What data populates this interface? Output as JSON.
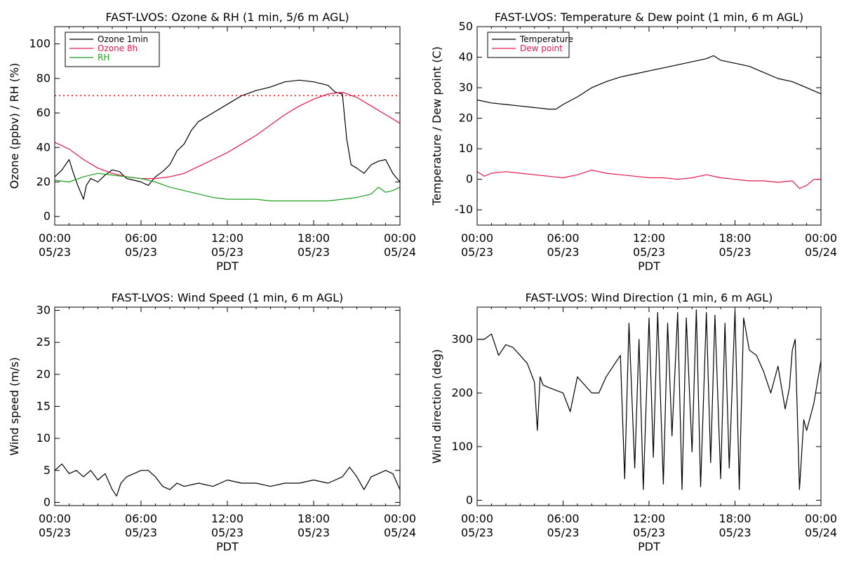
{
  "colors": {
    "black": "#000000",
    "red": "#e8174a",
    "green": "#1ea01e",
    "ref_line": "#ff0000"
  },
  "chart_data": [
    {
      "type": "line",
      "title": "FAST-LVOS: Ozone & RH (1 min, 5/6 m AGL)",
      "xlabel": "PDT",
      "ylabel": "Ozone (ppbv) / RH (%)",
      "xlim": [
        0,
        24
      ],
      "ylim": [
        -5,
        110
      ],
      "xticks": [
        {
          "x": 0,
          "label": "00:00",
          "date": "05/23"
        },
        {
          "x": 6,
          "label": "06:00",
          "date": "05/23"
        },
        {
          "x": 12,
          "label": "12:00",
          "date": "05/23"
        },
        {
          "x": 18,
          "label": "18:00",
          "date": "05/23"
        },
        {
          "x": 24,
          "label": "00:00",
          "date": "05/24"
        }
      ],
      "yticks": [
        0,
        20,
        40,
        60,
        80,
        100
      ],
      "legend": "top-left",
      "reference_lines": [
        {
          "y": 70,
          "style": "dotted",
          "color": "red"
        }
      ],
      "series": [
        {
          "name": "Ozone 1min",
          "color": "black",
          "x": [
            0,
            0.5,
            1,
            1.3,
            1.6,
            2,
            2.2,
            2.5,
            3,
            3.5,
            4,
            4.5,
            5,
            5.5,
            6,
            6.5,
            7,
            7.5,
            8,
            8.5,
            9,
            9.5,
            10,
            11,
            12,
            13,
            14,
            15,
            16,
            17,
            18,
            18.5,
            19,
            19.5,
            20,
            20.3,
            20.6,
            21,
            21.5,
            22,
            22.5,
            23,
            23.5,
            24
          ],
          "y": [
            23,
            27,
            33,
            25,
            18,
            10,
            18,
            22,
            20,
            24,
            27,
            26,
            22,
            21,
            20,
            18,
            23,
            26,
            30,
            38,
            42,
            50,
            55,
            60,
            65,
            70,
            73,
            75,
            78,
            79,
            78,
            77,
            76,
            72,
            71,
            45,
            30,
            28,
            25,
            30,
            32,
            33,
            25,
            20
          ]
        },
        {
          "name": "Ozone 8h",
          "color": "red",
          "x": [
            0,
            1,
            2,
            3,
            4,
            5,
            6,
            7,
            8,
            9,
            10,
            11,
            12,
            13,
            14,
            15,
            16,
            17,
            18,
            19,
            20,
            21,
            22,
            23,
            24
          ],
          "y": [
            43,
            39,
            33,
            28,
            25,
            23,
            22,
            22,
            23,
            25,
            29,
            33,
            37,
            42,
            47,
            53,
            59,
            64,
            68,
            71,
            72,
            69,
            64,
            59,
            54
          ]
        },
        {
          "name": "RH",
          "color": "green",
          "x": [
            0,
            1,
            2,
            3,
            4,
            5,
            6,
            7,
            8,
            9,
            10,
            11,
            12,
            13,
            14,
            15,
            16,
            17,
            18,
            19,
            20,
            21,
            22,
            22.5,
            23,
            23.5,
            24
          ],
          "y": [
            21,
            20,
            23,
            25,
            24,
            23,
            22,
            20,
            17,
            15,
            13,
            11,
            10,
            10,
            10,
            9,
            9,
            9,
            9,
            9,
            10,
            11,
            13,
            17,
            14,
            15,
            17
          ]
        }
      ]
    },
    {
      "type": "line",
      "title": "FAST-LVOS: Temperature & Dew point (1 min, 6 m AGL)",
      "xlabel": "PDT",
      "ylabel": "Temperature / Dew point (C)",
      "xlim": [
        0,
        24
      ],
      "ylim": [
        -15,
        50
      ],
      "xticks": [
        {
          "x": 0,
          "label": "00:00",
          "date": "05/23"
        },
        {
          "x": 6,
          "label": "06:00",
          "date": "05/23"
        },
        {
          "x": 12,
          "label": "12:00",
          "date": "05/23"
        },
        {
          "x": 18,
          "label": "18:00",
          "date": "05/23"
        },
        {
          "x": 24,
          "label": "00:00",
          "date": "05/24"
        }
      ],
      "yticks": [
        -10,
        0,
        10,
        20,
        30,
        40,
        50
      ],
      "legend": "top-left",
      "series": [
        {
          "name": "Temperature",
          "color": "black",
          "x": [
            0,
            1,
            2,
            3,
            4,
            5,
            5.5,
            6,
            7,
            8,
            9,
            10,
            11,
            12,
            13,
            14,
            15,
            16,
            16.5,
            17,
            18,
            19,
            20,
            21,
            22,
            23,
            24
          ],
          "y": [
            26,
            25,
            24.5,
            24,
            23.5,
            23,
            23,
            24.5,
            27,
            30,
            32,
            33.5,
            34.5,
            35.5,
            36.5,
            37.5,
            38.5,
            39.5,
            40.5,
            39,
            38,
            37,
            35,
            33,
            32,
            30,
            28
          ]
        },
        {
          "name": "Dew point",
          "color": "red",
          "x": [
            0,
            0.5,
            1,
            2,
            3,
            4,
            5,
            6,
            7,
            8,
            9,
            10,
            11,
            12,
            13,
            14,
            15,
            16,
            17,
            18,
            19,
            20,
            21,
            22,
            22.5,
            23,
            23.5,
            24
          ],
          "y": [
            2.5,
            1,
            2,
            2.5,
            2,
            1.5,
            1,
            0.5,
            1.5,
            3,
            2,
            1.5,
            1,
            0.5,
            0.5,
            0,
            0.5,
            1.5,
            0.5,
            0,
            -0.5,
            -0.5,
            -1,
            -0.5,
            -3,
            -2,
            0,
            0
          ]
        }
      ]
    },
    {
      "type": "line",
      "title": "FAST-LVOS: Wind Speed (1 min, 6 m AGL)",
      "xlabel": "PDT",
      "ylabel": "Wind speed (m/s)",
      "xlim": [
        0,
        24
      ],
      "ylim": [
        -0.5,
        30.5
      ],
      "xticks": [
        {
          "x": 0,
          "label": "00:00",
          "date": "05/23"
        },
        {
          "x": 6,
          "label": "06:00",
          "date": "05/23"
        },
        {
          "x": 12,
          "label": "12:00",
          "date": "05/23"
        },
        {
          "x": 18,
          "label": "18:00",
          "date": "05/23"
        },
        {
          "x": 24,
          "label": "00:00",
          "date": "05/24"
        }
      ],
      "yticks": [
        0,
        5,
        10,
        15,
        20,
        25,
        30
      ],
      "series": [
        {
          "name": "",
          "color": "black",
          "x": [
            0,
            0.5,
            1,
            1.5,
            2,
            2.5,
            3,
            3.5,
            4,
            4.3,
            4.6,
            5,
            5.5,
            6,
            6.5,
            7,
            7.5,
            8,
            8.5,
            9,
            10,
            11,
            12,
            13,
            14,
            15,
            16,
            17,
            18,
            19,
            20,
            20.5,
            21,
            21.5,
            22,
            22.5,
            23,
            23.5,
            24
          ],
          "y": [
            5,
            6,
            4.5,
            5,
            4,
            5,
            3.5,
            4.5,
            2,
            1,
            3,
            4,
            4.5,
            5,
            5,
            4,
            2.5,
            2,
            3,
            2.5,
            3,
            2.5,
            3.5,
            3,
            3,
            2.5,
            3,
            3,
            3.5,
            3,
            4,
            5.5,
            4,
            2,
            4,
            4.5,
            5,
            4.5,
            2
          ]
        }
      ]
    },
    {
      "type": "line",
      "title": "FAST-LVOS: Wind Direction (1 min, 6 m AGL)",
      "xlabel": "PDT",
      "ylabel": "Wind direction (deg)",
      "xlim": [
        0,
        24
      ],
      "ylim": [
        -10,
        360
      ],
      "xticks": [
        {
          "x": 0,
          "label": "00:00",
          "date": "05/23"
        },
        {
          "x": 6,
          "label": "06:00",
          "date": "05/23"
        },
        {
          "x": 12,
          "label": "12:00",
          "date": "05/23"
        },
        {
          "x": 18,
          "label": "18:00",
          "date": "05/23"
        },
        {
          "x": 24,
          "label": "00:00",
          "date": "05/24"
        }
      ],
      "yticks": [
        0,
        100,
        200,
        300
      ],
      "series": [
        {
          "name": "",
          "color": "black",
          "x": [
            0,
            0.5,
            1,
            1.5,
            2,
            2.5,
            3,
            3.5,
            4,
            4.2,
            4.4,
            4.6,
            5,
            5.5,
            6,
            6.5,
            7,
            7.5,
            8,
            8.5,
            9,
            9.5,
            10,
            10.3,
            10.6,
            11,
            11.3,
            11.6,
            12,
            12.3,
            12.6,
            13,
            13.3,
            13.6,
            14,
            14.3,
            14.6,
            15,
            15.3,
            15.6,
            16,
            16.3,
            16.6,
            17,
            17.3,
            17.6,
            18,
            18.3,
            18.6,
            19,
            19.5,
            20,
            20.5,
            21,
            21.5,
            21.8,
            22,
            22.2,
            22.5,
            22.8,
            23,
            23.5,
            24
          ],
          "y": [
            300,
            300,
            310,
            270,
            290,
            285,
            270,
            255,
            220,
            130,
            230,
            215,
            210,
            205,
            200,
            165,
            230,
            215,
            200,
            200,
            230,
            250,
            270,
            40,
            330,
            60,
            300,
            20,
            340,
            80,
            350,
            30,
            330,
            120,
            350,
            20,
            340,
            90,
            355,
            25,
            350,
            70,
            345,
            40,
            330,
            60,
            355,
            20,
            340,
            280,
            270,
            240,
            200,
            250,
            170,
            210,
            280,
            300,
            20,
            150,
            130,
            180,
            260
          ]
        }
      ]
    }
  ]
}
